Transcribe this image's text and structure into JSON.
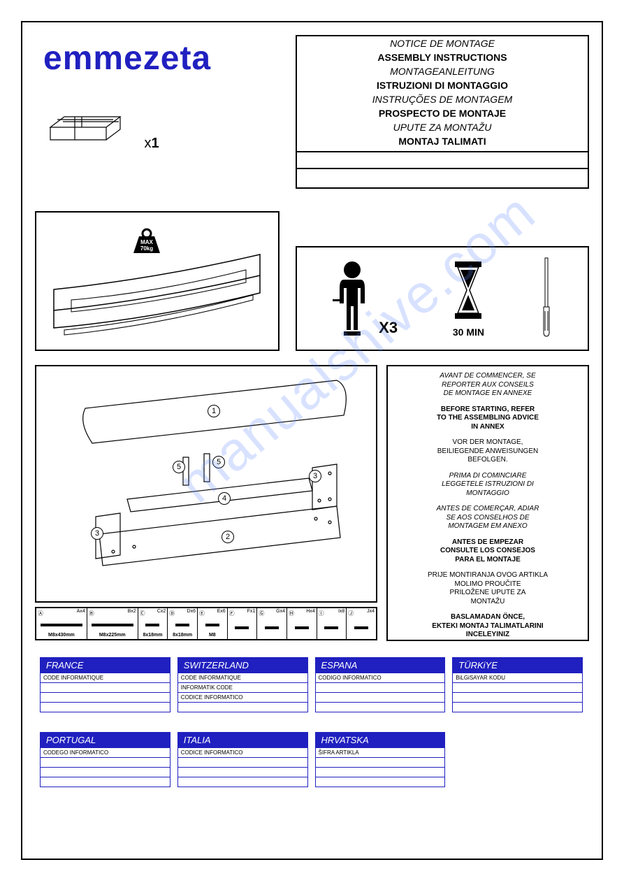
{
  "brand": "emmezeta",
  "brand_color": "#2020c0",
  "package_count": "x1",
  "weight": {
    "label1": "MAX",
    "label2": "70kg"
  },
  "titles": [
    {
      "text": "NOTICE DE MONTAGE",
      "style": "italic"
    },
    {
      "text": "ASSEMBLY INSTRUCTIONS",
      "style": "bold"
    },
    {
      "text": "MONTAGEANLEITUNG",
      "style": "italic"
    },
    {
      "text": "ISTRUZIONI DI MONTAGGIO",
      "style": "bold"
    },
    {
      "text": "INSTRUÇÕES DE MONTAGEM",
      "style": "italic"
    },
    {
      "text": "PROSPECTO DE MONTAJE",
      "style": "bold"
    },
    {
      "text": "UPUTE ZA MONTAŽU",
      "style": "italic"
    },
    {
      "text": "MONTAJ TALIMATI",
      "style": "bold"
    }
  ],
  "people_count": "X3",
  "time_label": "30 MIN",
  "part_numbers": [
    "1",
    "2",
    "3",
    "4",
    "5",
    "5",
    "3"
  ],
  "hardware": [
    {
      "id": "Ⓐ",
      "qty": "Ax4",
      "label": "M8x430mm",
      "big": true
    },
    {
      "id": "Ⓑ",
      "qty": "Bx2",
      "label": "M8x225mm",
      "big": true
    },
    {
      "id": "Ⓒ",
      "qty": "Cx2",
      "label": "8x18mm"
    },
    {
      "id": "Ⓓ",
      "qty": "Dx6",
      "label": "8x18mm"
    },
    {
      "id": "Ⓔ",
      "qty": "Ex6",
      "label": "M8"
    },
    {
      "id": "Ⓕ",
      "qty": "Fx1",
      "label": ""
    },
    {
      "id": "Ⓖ",
      "qty": "Gx4",
      "label": ""
    },
    {
      "id": "Ⓗ",
      "qty": "Hx4",
      "label": ""
    },
    {
      "id": "Ⓘ",
      "qty": "Ix8",
      "label": ""
    },
    {
      "id": "Ⓙ",
      "qty": "Jx4",
      "label": ""
    }
  ],
  "advice": [
    {
      "lines": [
        "AVANT DE COMMENCER, SE",
        "REPORTER AUX CONSEILS",
        "DE MONTAGE  EN ANNEXE"
      ],
      "style": "i"
    },
    {
      "lines": [
        "BEFORE STARTING, REFER",
        "TO THE ASSEMBLING ADVICE",
        "IN ANNEX"
      ],
      "style": "b"
    },
    {
      "lines": [
        "VOR DER MONTAGE,",
        "BEILIEGENDE ANWEISUNGEN",
        "BEFOLGEN."
      ],
      "style": ""
    },
    {
      "lines": [
        "PRIMA DI COMINCIARE",
        "LEGGETELE ISTRUZIONI DI",
        "MONTAGGIO"
      ],
      "style": "i"
    },
    {
      "lines": [
        "ANTES DE COMERÇAR, ADIAR",
        "SE AOS CONSELHOS DE",
        "MONTAGEM EM ANEXO"
      ],
      "style": "i"
    },
    {
      "lines": [
        "ANTES DE EMPEZAR",
        "CONSULTE LOS CONSEJOS",
        "PARA EL MONTAJE"
      ],
      "style": "b"
    },
    {
      "lines": [
        "PRIJE MONTIRANJA OVOG ARTIKLA",
        "MOLIMO    PROUČITE",
        "PRILOŽENE UPUTE ZA",
        "MONTAŽU"
      ],
      "style": ""
    },
    {
      "lines": [
        "BASLAMADAN ÖNCE,",
        "EKTEKI MONTAJ TALIMATLARINI",
        "INCELEYINIZ"
      ],
      "style": "b"
    }
  ],
  "countries_row1": [
    {
      "name": "FRANCE",
      "sub": [
        "CODE INFORMATIQUE",
        "",
        "",
        ""
      ]
    },
    {
      "name": "SWITZERLAND",
      "sub": [
        "CODE INFORMATIQUE",
        "INFORMATIK CODE",
        "CODICE INFORMATICO",
        ""
      ]
    },
    {
      "name": "ESPANA",
      "sub": [
        "CODIGO INFORMATICO",
        "",
        "",
        ""
      ]
    },
    {
      "name": "TÜRKiYE",
      "sub": [
        "BiLGiSAYAR KODU",
        "",
        "",
        ""
      ]
    }
  ],
  "countries_row2": [
    {
      "name": "PORTUGAL",
      "sub": [
        "CODEGO INFORMATICO",
        "",
        "",
        ""
      ]
    },
    {
      "name": "ITALIA",
      "sub": [
        "CODICE INFORMATICO",
        "",
        "",
        ""
      ]
    },
    {
      "name": "HRVATSKA",
      "sub": [
        "ŠIFRA ARTIKLA",
        "",
        "",
        ""
      ]
    }
  ],
  "watermark": "manualshive.com"
}
